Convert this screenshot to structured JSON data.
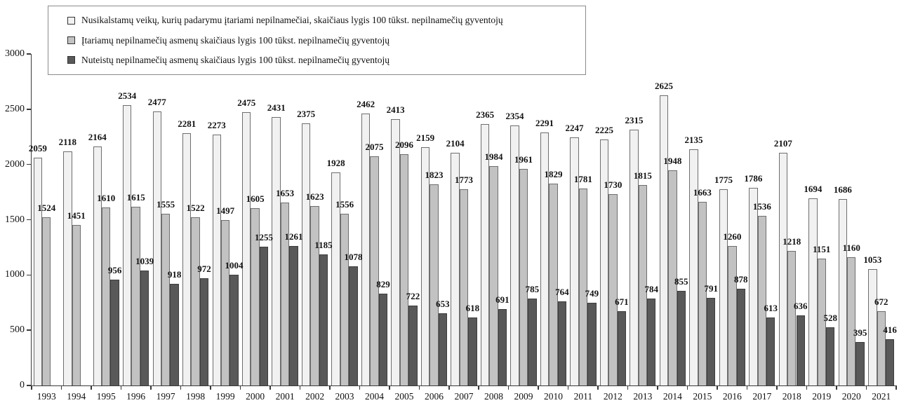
{
  "chart_data": {
    "type": "bar",
    "title": "",
    "xlabel": "",
    "ylabel": "",
    "ylim": [
      0,
      3000
    ],
    "yticks": [
      0,
      500,
      1000,
      1500,
      2000,
      2500,
      3000
    ],
    "grid": false,
    "legend_position": "top-left",
    "categories": [
      "1993",
      "1994",
      "1995",
      "1996",
      "1997",
      "1998",
      "1999",
      "2000",
      "2001",
      "2002",
      "2003",
      "2004",
      "2005",
      "2006",
      "2007",
      "2008",
      "2009",
      "2010",
      "2011",
      "2012",
      "2013",
      "2014",
      "2015",
      "2016",
      "2017",
      "2018",
      "2019",
      "2020",
      "2021"
    ],
    "series": [
      {
        "name": "Nusikalstamų veikų, kurių padarymu įtariami nepilnamečiai, skaičiaus lygis 100 tūkst. nepilnamečių gyventojų",
        "color": "#f1f1f1",
        "border_color": "#6e6e6e",
        "values": [
          2059,
          2118,
          2164,
          2534,
          2477,
          2281,
          2273,
          2475,
          2431,
          2375,
          1928,
          2462,
          2413,
          2159,
          2104,
          2365,
          2354,
          2291,
          2247,
          2225,
          2315,
          2625,
          2135,
          1775,
          1786,
          2107,
          1694,
          1686,
          1053
        ]
      },
      {
        "name": "Įtariamų nepilnamečių asmenų skaičiaus lygis 100 tūkst. nepilnamečių gyventojų",
        "color": "#c2c2c2",
        "border_color": "#6e6e6e",
        "values": [
          1524,
          1451,
          1610,
          1615,
          1555,
          1522,
          1497,
          1605,
          1653,
          1623,
          1556,
          2075,
          2096,
          1823,
          1773,
          1984,
          1961,
          1829,
          1781,
          1730,
          1815,
          1948,
          1663,
          1260,
          1536,
          1218,
          1151,
          1160,
          672
        ]
      },
      {
        "name": "Nuteistų nepilnamečių asmenų skaičiaus lygis 100 tūkst. nepilnamečių gyventojų",
        "color": "#595959",
        "border_color": "#3d3d3d",
        "values": [
          null,
          null,
          956,
          1039,
          918,
          972,
          1004,
          1255,
          1261,
          1185,
          1078,
          829,
          722,
          653,
          618,
          691,
          785,
          764,
          749,
          671,
          784,
          855,
          791,
          878,
          613,
          636,
          528,
          395,
          416
        ]
      }
    ]
  }
}
